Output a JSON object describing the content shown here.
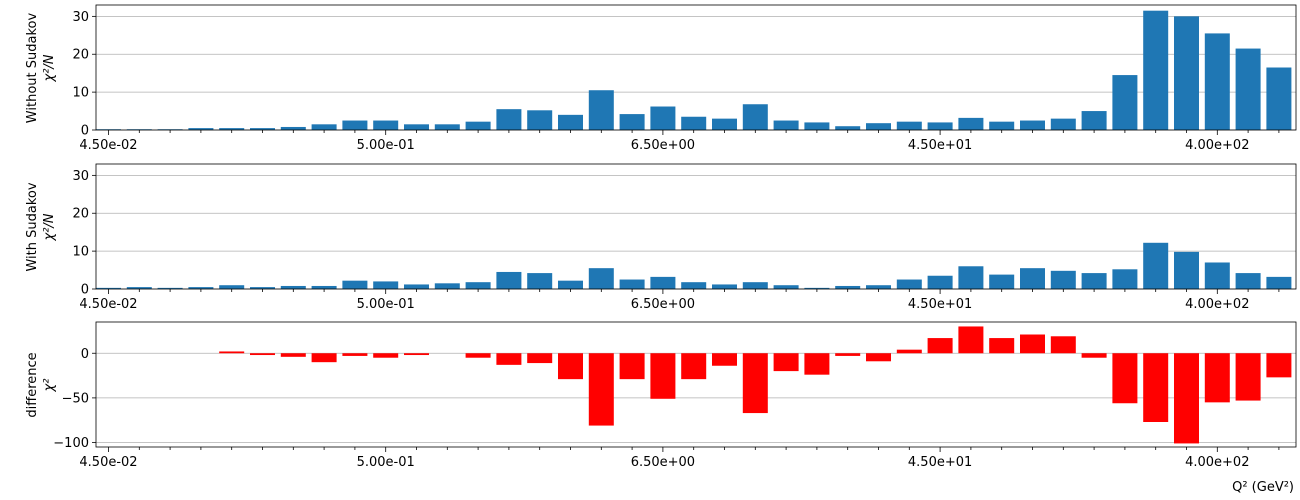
{
  "chart_data": [
    {
      "type": "bar",
      "panel": "top",
      "ylabel_line1": "Without Sudakov",
      "ylabel_line2": "χ²/N",
      "ylim": [
        0,
        33
      ],
      "yticks": [
        0,
        10,
        20,
        30
      ],
      "grid": "horizontal",
      "color": "#1f77b4",
      "values": [
        0.2,
        0.2,
        0.2,
        0.5,
        0.5,
        0.5,
        0.8,
        1.5,
        2.5,
        2.5,
        1.5,
        1.5,
        2.2,
        5.5,
        5.2,
        4.0,
        10.5,
        4.2,
        6.2,
        3.5,
        3.0,
        6.8,
        2.5,
        2.0,
        1.0,
        1.8,
        2.2,
        2.0,
        3.2,
        2.2,
        2.5,
        3.0,
        5.0,
        14.5,
        31.5,
        30.0,
        25.5,
        21.5,
        16.5
      ]
    },
    {
      "type": "bar",
      "panel": "middle",
      "ylabel_line1": "With Sudakov",
      "ylabel_line2": "χ²/N",
      "ylim": [
        0,
        33
      ],
      "yticks": [
        0,
        10,
        20,
        30
      ],
      "grid": "horizontal",
      "color": "#1f77b4",
      "values": [
        0.3,
        0.5,
        0.3,
        0.5,
        1.0,
        0.5,
        0.8,
        0.8,
        2.2,
        2.0,
        1.2,
        1.5,
        1.8,
        4.5,
        4.2,
        2.2,
        5.5,
        2.5,
        3.2,
        1.8,
        1.2,
        1.8,
        1.0,
        0.3,
        0.8,
        1.0,
        2.5,
        3.5,
        6.0,
        3.8,
        5.5,
        4.8,
        4.2,
        5.2,
        12.2,
        9.8,
        7.0,
        4.2,
        3.2
      ]
    },
    {
      "type": "bar",
      "panel": "bottom",
      "ylabel_line1": "difference",
      "ylabel_line2": "χ²",
      "ylim": [
        -105,
        35
      ],
      "yticks": [
        0,
        -50,
        -100
      ],
      "grid": "horizontal",
      "color": "#ff0000",
      "values": [
        0,
        0,
        0,
        0,
        2,
        -2,
        -4,
        -10,
        -3,
        -5,
        -2,
        0,
        -5,
        -13,
        -11,
        -29,
        -81,
        -29,
        -51,
        -29,
        -14,
        -67,
        -20,
        -24,
        -3,
        -9,
        4,
        17,
        30,
        17,
        21,
        19,
        -5,
        -56,
        -77,
        -101,
        -55,
        -53,
        -27
      ]
    }
  ],
  "xaxis": {
    "tick_labels": [
      "4.50e-02",
      "5.00e-01",
      "6.50e+00",
      "4.50e+01",
      "4.00e+02"
    ],
    "xlabel": "Q² (GeV²)"
  },
  "yaxis_tick_labels_top": [
    "0",
    "10",
    "20",
    "30"
  ],
  "yaxis_tick_labels_bottom": [
    "0",
    "−50",
    "−100"
  ]
}
